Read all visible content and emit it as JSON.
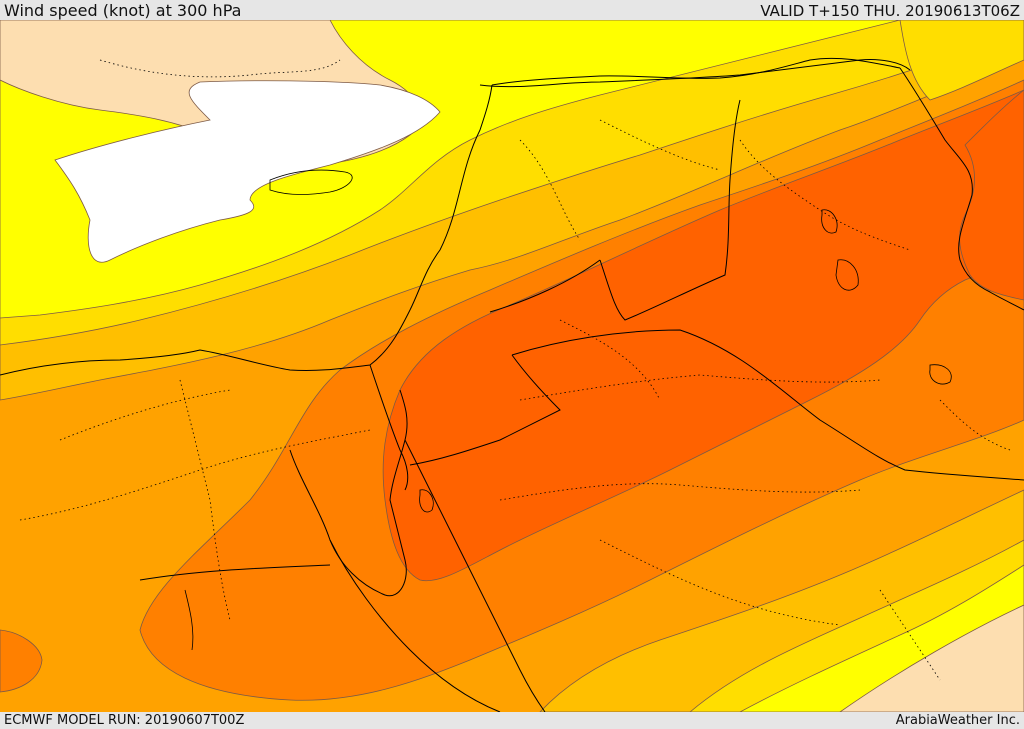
{
  "header": {
    "title": "Wind speed (knot) at 300 hPa",
    "valid": "VALID T+150 THU. 20190613T06Z"
  },
  "footer": {
    "model_run": "ECMWF MODEL RUN: 20190607T00Z",
    "credit": "ArabiaWeather Inc."
  },
  "map": {
    "variable": "wind speed",
    "unit": "knot",
    "level": "300 hPa",
    "palette": {
      "calm": "#ffffff",
      "very_low": "#fddeb0",
      "low": "#ffff00",
      "low_mid": "#ffde00",
      "mid": "#ffbf00",
      "mid_high": "#ffa200",
      "high": "#ff8000",
      "very_high": "#ff6200",
      "contour_line": "#7d5a46",
      "border_line": "#000000"
    }
  }
}
